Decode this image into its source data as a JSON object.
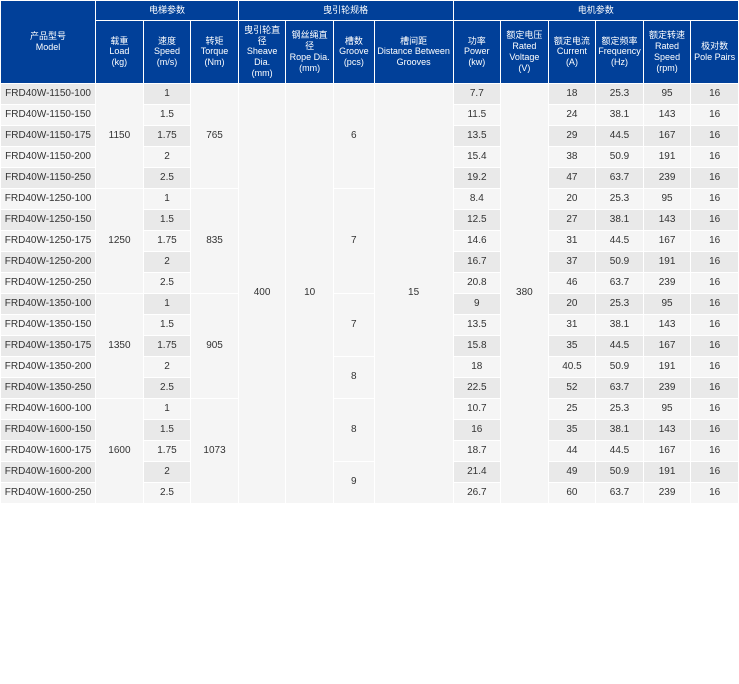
{
  "headers": {
    "model": {
      "cn": "产品型号",
      "en": "Model"
    },
    "group_elevator": "电梯参数",
    "group_sheave": "曳引轮规格",
    "group_motor": "电机参数",
    "load": {
      "cn": "载重",
      "en": "Load",
      "unit": "(kg)"
    },
    "speed": {
      "cn": "速度",
      "en": "Speed",
      "unit": "(m/s)"
    },
    "torque": {
      "cn": "转矩",
      "en": "Torque",
      "unit": "(Nm)"
    },
    "sheave": {
      "cn": "曳引轮直径",
      "en": "Sheave Dia.",
      "unit": "(mm)"
    },
    "rope": {
      "cn": "钢丝绳直径",
      "en": "Rope Dia.",
      "unit": "(mm)"
    },
    "groove": {
      "cn": "槽数",
      "en": "Groove",
      "unit": "(pcs)"
    },
    "dist": {
      "cn": "槽间距",
      "en": "Distance Between Grooves"
    },
    "power": {
      "cn": "功率",
      "en": "Power",
      "unit": "(kw)"
    },
    "voltage": {
      "cn": "额定电压",
      "en": "Rated Voltage (V)"
    },
    "current": {
      "cn": "额定电流",
      "en": "Current (A)"
    },
    "freq": {
      "cn": "额定频率",
      "en": "Frequency",
      "unit": "(Hz)"
    },
    "rspeed": {
      "cn": "额定转速",
      "en": "Rated Speed",
      "unit": "(rpm)"
    },
    "poles": {
      "cn": "极对数",
      "en": "Pole Pairs"
    }
  },
  "shared": {
    "sheave_dia": "400",
    "rope_dia": "10",
    "dist": "15",
    "voltage": "380"
  },
  "groups": [
    {
      "load": "1150",
      "torque": "765",
      "groove": [
        {
          "v": "6",
          "span": 5
        }
      ],
      "rows": [
        {
          "model": "FRD40W-1150-100",
          "speed": "1",
          "power": "7.7",
          "current": "18",
          "freq": "25.3",
          "rspeed": "95",
          "poles": "16"
        },
        {
          "model": "FRD40W-1150-150",
          "speed": "1.5",
          "power": "11.5",
          "current": "24",
          "freq": "38.1",
          "rspeed": "143",
          "poles": "16"
        },
        {
          "model": "FRD40W-1150-175",
          "speed": "1.75",
          "power": "13.5",
          "current": "29",
          "freq": "44.5",
          "rspeed": "167",
          "poles": "16"
        },
        {
          "model": "FRD40W-1150-200",
          "speed": "2",
          "power": "15.4",
          "current": "38",
          "freq": "50.9",
          "rspeed": "191",
          "poles": "16"
        },
        {
          "model": "FRD40W-1150-250",
          "speed": "2.5",
          "power": "19.2",
          "current": "47",
          "freq": "63.7",
          "rspeed": "239",
          "poles": "16"
        }
      ]
    },
    {
      "load": "1250",
      "torque": "835",
      "groove": [
        {
          "v": "7",
          "span": 5
        }
      ],
      "rows": [
        {
          "model": "FRD40W-1250-100",
          "speed": "1",
          "power": "8.4",
          "current": "20",
          "freq": "25.3",
          "rspeed": "95",
          "poles": "16"
        },
        {
          "model": "FRD40W-1250-150",
          "speed": "1.5",
          "power": "12.5",
          "current": "27",
          "freq": "38.1",
          "rspeed": "143",
          "poles": "16"
        },
        {
          "model": "FRD40W-1250-175",
          "speed": "1.75",
          "power": "14.6",
          "current": "31",
          "freq": "44.5",
          "rspeed": "167",
          "poles": "16"
        },
        {
          "model": "FRD40W-1250-200",
          "speed": "2",
          "power": "16.7",
          "current": "37",
          "freq": "50.9",
          "rspeed": "191",
          "poles": "16"
        },
        {
          "model": "FRD40W-1250-250",
          "speed": "2.5",
          "power": "20.8",
          "current": "46",
          "freq": "63.7",
          "rspeed": "239",
          "poles": "16"
        }
      ]
    },
    {
      "load": "1350",
      "torque": "905",
      "groove": [
        {
          "v": "7",
          "span": 3
        },
        {
          "v": "8",
          "span": 2
        }
      ],
      "rows": [
        {
          "model": "FRD40W-1350-100",
          "speed": "1",
          "power": "9",
          "current": "20",
          "freq": "25.3",
          "rspeed": "95",
          "poles": "16"
        },
        {
          "model": "FRD40W-1350-150",
          "speed": "1.5",
          "power": "13.5",
          "current": "31",
          "freq": "38.1",
          "rspeed": "143",
          "poles": "16"
        },
        {
          "model": "FRD40W-1350-175",
          "speed": "1.75",
          "power": "15.8",
          "current": "35",
          "freq": "44.5",
          "rspeed": "167",
          "poles": "16"
        },
        {
          "model": "FRD40W-1350-200",
          "speed": "2",
          "power": "18",
          "current": "40.5",
          "freq": "50.9",
          "rspeed": "191",
          "poles": "16"
        },
        {
          "model": "FRD40W-1350-250",
          "speed": "2.5",
          "power": "22.5",
          "current": "52",
          "freq": "63.7",
          "rspeed": "239",
          "poles": "16"
        }
      ]
    },
    {
      "load": "1600",
      "torque": "1073",
      "groove": [
        {
          "v": "8",
          "span": 3
        },
        {
          "v": "9",
          "span": 2
        }
      ],
      "rows": [
        {
          "model": "FRD40W-1600-100",
          "speed": "1",
          "power": "10.7",
          "current": "25",
          "freq": "25.3",
          "rspeed": "95",
          "poles": "16"
        },
        {
          "model": "FRD40W-1600-150",
          "speed": "1.5",
          "power": "16",
          "current": "35",
          "freq": "38.1",
          "rspeed": "143",
          "poles": "16"
        },
        {
          "model": "FRD40W-1600-175",
          "speed": "1.75",
          "power": "18.7",
          "current": "44",
          "freq": "44.5",
          "rspeed": "167",
          "poles": "16"
        },
        {
          "model": "FRD40W-1600-200",
          "speed": "2",
          "power": "21.4",
          "current": "49",
          "freq": "50.9",
          "rspeed": "191",
          "poles": "16"
        },
        {
          "model": "FRD40W-1600-250",
          "speed": "2.5",
          "power": "26.7",
          "current": "60",
          "freq": "63.7",
          "rspeed": "239",
          "poles": "16"
        }
      ]
    }
  ]
}
